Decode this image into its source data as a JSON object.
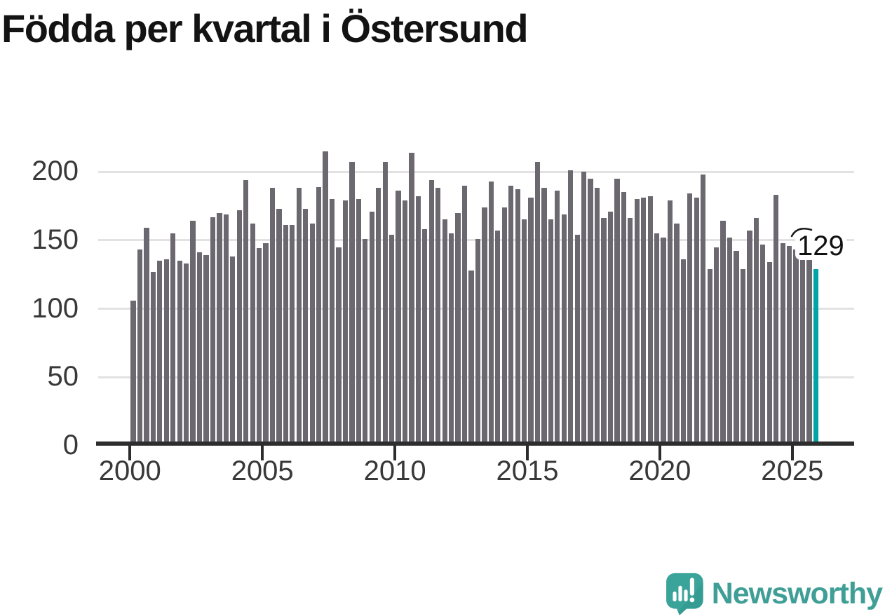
{
  "title": "Födda per kvartal i Östersund",
  "chart_data": {
    "type": "bar",
    "title": "Födda per kvartal i Östersund",
    "xlabel": "",
    "ylabel": "",
    "ylim": [
      0,
      225
    ],
    "y_ticks": [
      0,
      50,
      100,
      150,
      200
    ],
    "x_tick_labels": [
      "2000",
      "2005",
      "2010",
      "2015",
      "2020",
      "2025"
    ],
    "grid": "horizontal",
    "legend": "none",
    "categories": [
      "2000Q1",
      "2000Q2",
      "2000Q3",
      "2000Q4",
      "2001Q1",
      "2001Q2",
      "2001Q3",
      "2001Q4",
      "2002Q1",
      "2002Q2",
      "2002Q3",
      "2002Q4",
      "2003Q1",
      "2003Q2",
      "2003Q3",
      "2003Q4",
      "2004Q1",
      "2004Q2",
      "2004Q3",
      "2004Q4",
      "2005Q1",
      "2005Q2",
      "2005Q3",
      "2005Q4",
      "2006Q1",
      "2006Q2",
      "2006Q3",
      "2006Q4",
      "2007Q1",
      "2007Q2",
      "2007Q3",
      "2007Q4",
      "2008Q1",
      "2008Q2",
      "2008Q3",
      "2008Q4",
      "2009Q1",
      "2009Q2",
      "2009Q3",
      "2009Q4",
      "2010Q1",
      "2010Q2",
      "2010Q3",
      "2010Q4",
      "2011Q1",
      "2011Q2",
      "2011Q3",
      "2011Q4",
      "2012Q1",
      "2012Q2",
      "2012Q3",
      "2012Q4",
      "2013Q1",
      "2013Q2",
      "2013Q3",
      "2013Q4",
      "2014Q1",
      "2014Q2",
      "2014Q3",
      "2014Q4",
      "2015Q1",
      "2015Q2",
      "2015Q3",
      "2015Q4",
      "2016Q1",
      "2016Q2",
      "2016Q3",
      "2016Q4",
      "2017Q1",
      "2017Q2",
      "2017Q3",
      "2017Q4",
      "2018Q1",
      "2018Q2",
      "2018Q3",
      "2018Q4",
      "2019Q1",
      "2019Q2",
      "2019Q3",
      "2019Q4",
      "2020Q1",
      "2020Q2",
      "2020Q3",
      "2020Q4",
      "2021Q1",
      "2021Q2",
      "2021Q3",
      "2021Q4",
      "2022Q1",
      "2022Q2",
      "2022Q3",
      "2022Q4",
      "2023Q1",
      "2023Q2",
      "2023Q3",
      "2023Q4",
      "2024Q1",
      "2024Q2",
      "2024Q3",
      "2024Q4",
      "2025Q1",
      "2025Q2",
      "2025Q3",
      "2025Q4"
    ],
    "values": [
      106,
      143,
      159,
      127,
      135,
      136,
      155,
      135,
      133,
      164,
      141,
      139,
      167,
      170,
      169,
      138,
      172,
      194,
      162,
      144,
      148,
      188,
      173,
      161,
      161,
      188,
      173,
      162,
      189,
      215,
      180,
      145,
      179,
      207,
      180,
      151,
      171,
      188,
      207,
      154,
      186,
      179,
      214,
      182,
      158,
      194,
      188,
      165,
      155,
      170,
      190,
      128,
      151,
      174,
      193,
      157,
      174,
      190,
      187,
      165,
      181,
      207,
      188,
      165,
      186,
      169,
      201,
      154,
      200,
      195,
      188,
      166,
      171,
      195,
      185,
      166,
      180,
      181,
      182,
      155,
      152,
      179,
      162,
      136,
      184,
      181,
      198,
      129,
      145,
      164,
      152,
      142,
      129,
      157,
      166,
      147,
      134,
      183,
      148,
      146,
      143,
      138,
      137,
      129
    ],
    "highlight_index": 103,
    "annotation": {
      "text": "129",
      "index": 103
    },
    "colors": {
      "bar": "#6b6870",
      "highlight": "#00a3a6",
      "grid": "#e2e2e2",
      "axis": "#2d2d2d",
      "tick_text": "#383838",
      "title_text": "#131313"
    }
  },
  "branding": {
    "logo_text": "Newsworthy",
    "bubble_color": "#3aa49a",
    "bubble_shade": "#2f958d",
    "text_color": "#3f9f96"
  }
}
